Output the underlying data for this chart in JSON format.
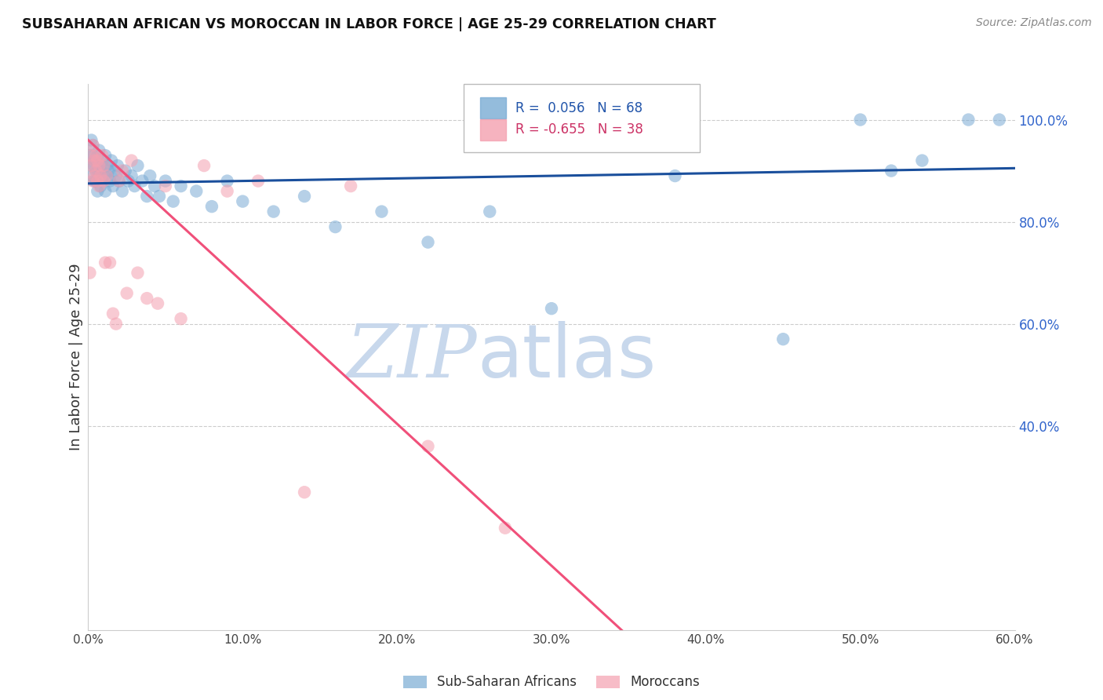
{
  "title": "SUBSAHARAN AFRICAN VS MOROCCAN IN LABOR FORCE | AGE 25-29 CORRELATION CHART",
  "source": "Source: ZipAtlas.com",
  "ylabel": "In Labor Force | Age 25-29",
  "xlim": [
    0.0,
    0.6
  ],
  "ylim": [
    0.0,
    1.07
  ],
  "xtick_labels": [
    "0.0%",
    "10.0%",
    "20.0%",
    "30.0%",
    "40.0%",
    "50.0%",
    "60.0%"
  ],
  "xtick_vals": [
    0.0,
    0.1,
    0.2,
    0.3,
    0.4,
    0.5,
    0.6
  ],
  "right_ytick_labels": [
    "40.0%",
    "60.0%",
    "80.0%",
    "100.0%"
  ],
  "right_ytick_vals": [
    0.4,
    0.6,
    0.8,
    1.0
  ],
  "grid_color": "#cccccc",
  "background_color": "#ffffff",
  "blue_color": "#7aabd4",
  "pink_color": "#f4a0b0",
  "blue_line_color": "#1a4f9c",
  "pink_line_color": "#f0507a",
  "dash_color": "#b0b0b0",
  "legend_blue_label": "Sub-Saharan Africans",
  "legend_pink_label": "Moroccans",
  "R_blue": "0.056",
  "N_blue": "68",
  "R_pink": "-0.655",
  "N_pink": "38",
  "watermark_zip_color": "#c8d8ec",
  "watermark_atlas_color": "#c8d8ec",
  "blue_scatter_x": [
    0.001,
    0.002,
    0.002,
    0.003,
    0.003,
    0.003,
    0.004,
    0.004,
    0.004,
    0.005,
    0.005,
    0.005,
    0.006,
    0.006,
    0.006,
    0.007,
    0.007,
    0.007,
    0.008,
    0.008,
    0.009,
    0.009,
    0.01,
    0.01,
    0.011,
    0.011,
    0.012,
    0.012,
    0.013,
    0.014,
    0.015,
    0.016,
    0.017,
    0.018,
    0.019,
    0.02,
    0.022,
    0.024,
    0.026,
    0.028,
    0.03,
    0.032,
    0.035,
    0.038,
    0.04,
    0.043,
    0.046,
    0.05,
    0.055,
    0.06,
    0.07,
    0.08,
    0.09,
    0.1,
    0.12,
    0.14,
    0.16,
    0.19,
    0.22,
    0.26,
    0.3,
    0.38,
    0.45,
    0.5,
    0.52,
    0.54,
    0.57,
    0.59
  ],
  "blue_scatter_y": [
    0.93,
    0.96,
    0.91,
    0.93,
    0.89,
    0.95,
    0.88,
    0.92,
    0.91,
    0.9,
    0.92,
    0.88,
    0.9,
    0.93,
    0.86,
    0.89,
    0.91,
    0.94,
    0.87,
    0.9,
    0.88,
    0.92,
    0.91,
    0.89,
    0.93,
    0.86,
    0.89,
    0.91,
    0.9,
    0.88,
    0.92,
    0.87,
    0.9,
    0.89,
    0.91,
    0.88,
    0.86,
    0.9,
    0.88,
    0.89,
    0.87,
    0.91,
    0.88,
    0.85,
    0.89,
    0.87,
    0.85,
    0.88,
    0.84,
    0.87,
    0.86,
    0.83,
    0.88,
    0.84,
    0.82,
    0.85,
    0.79,
    0.82,
    0.76,
    0.82,
    0.63,
    0.89,
    0.57,
    1.0,
    0.9,
    0.92,
    1.0,
    1.0
  ],
  "pink_scatter_x": [
    0.001,
    0.002,
    0.002,
    0.003,
    0.003,
    0.004,
    0.004,
    0.005,
    0.005,
    0.006,
    0.006,
    0.007,
    0.007,
    0.008,
    0.009,
    0.01,
    0.01,
    0.011,
    0.012,
    0.014,
    0.016,
    0.018,
    0.02,
    0.022,
    0.025,
    0.028,
    0.032,
    0.038,
    0.045,
    0.05,
    0.06,
    0.075,
    0.09,
    0.11,
    0.14,
    0.17,
    0.22,
    0.27
  ],
  "pink_scatter_y": [
    0.7,
    0.93,
    0.91,
    0.95,
    0.88,
    0.89,
    0.92,
    0.9,
    0.93,
    0.88,
    0.92,
    0.87,
    0.91,
    0.89,
    0.93,
    0.88,
    0.91,
    0.72,
    0.89,
    0.72,
    0.62,
    0.6,
    0.88,
    0.9,
    0.66,
    0.92,
    0.7,
    0.65,
    0.64,
    0.87,
    0.61,
    0.91,
    0.86,
    0.88,
    0.27,
    0.87,
    0.36,
    0.2
  ],
  "pink_line_end_solid": 0.48,
  "pink_line_end_dash": 0.6,
  "blue_intercept": 0.875,
  "blue_slope": 0.05,
  "pink_intercept": 0.96,
  "pink_slope": -2.78
}
